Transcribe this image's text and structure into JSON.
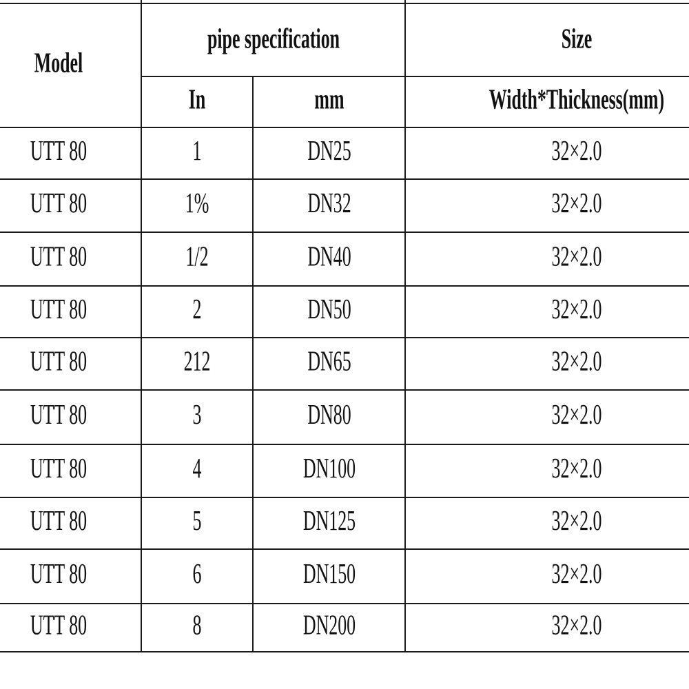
{
  "table": {
    "header": {
      "model": "Model",
      "pipe_specification": "pipe specification",
      "size": "Size",
      "in": "In",
      "mm": "mm",
      "width_thickness": "Width*Thickness(mm)"
    },
    "rows": [
      [
        "UTT 80",
        "1",
        "DN25",
        "32×2.0"
      ],
      [
        "UTT 80",
        "1%",
        "DN32",
        "32×2.0"
      ],
      [
        "UTT 80",
        "1/2",
        "DN40",
        "32×2.0"
      ],
      [
        "UTT 80",
        "2",
        "DN50",
        "32×2.0"
      ],
      [
        "UTT 80",
        "212",
        "DN65",
        "32×2.0"
      ],
      [
        "UTT 80",
        "3",
        "DN80",
        "32×2.0"
      ],
      [
        "UTT 80",
        "4",
        "DN100",
        "32×2.0"
      ],
      [
        "UTT 80",
        "5",
        "DN125",
        "32×2.0"
      ],
      [
        "UTT 80",
        "6",
        "DN150",
        "32×2.0"
      ],
      [
        "UTT 80",
        "8",
        "DN200",
        "32×2.0"
      ]
    ]
  }
}
